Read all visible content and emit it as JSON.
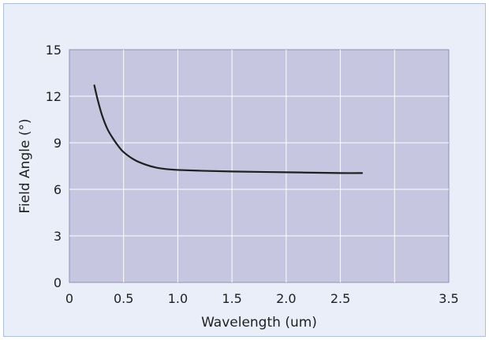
{
  "chart_data": {
    "type": "line",
    "title": "",
    "xlabel": "Wavelength (um)",
    "ylabel": "Field Angle (°)",
    "xlim": [
      0,
      3.5
    ],
    "ylim": [
      0,
      15
    ],
    "xticks": [
      0,
      0.5,
      1.0,
      1.5,
      2.0,
      2.5,
      3.5
    ],
    "xtick_labels": [
      "0",
      "0.5",
      "1.0",
      "1.5",
      "2.0",
      "2.5",
      "3.5"
    ],
    "yticks": [
      0,
      3,
      6,
      9,
      12,
      15
    ],
    "ytick_labels": [
      "0",
      "3",
      "6",
      "9",
      "12",
      "15"
    ],
    "grid": true,
    "legend": "none",
    "series": [
      {
        "values": [
          [
            0.23,
            12.7
          ],
          [
            0.26,
            11.8
          ],
          [
            0.3,
            10.8
          ],
          [
            0.35,
            9.9
          ],
          [
            0.4,
            9.3
          ],
          [
            0.45,
            8.8
          ],
          [
            0.5,
            8.4
          ],
          [
            0.6,
            7.9
          ],
          [
            0.7,
            7.6
          ],
          [
            0.8,
            7.4
          ],
          [
            0.9,
            7.3
          ],
          [
            1.0,
            7.25
          ],
          [
            1.2,
            7.2
          ],
          [
            1.5,
            7.15
          ],
          [
            2.0,
            7.1
          ],
          [
            2.5,
            7.05
          ],
          [
            2.7,
            7.05
          ]
        ]
      }
    ],
    "colors": {
      "frame_bg": "#e9eef8",
      "frame_border": "#aebfdc",
      "plot_bg": "#c6c6e0",
      "plot_border": "#8f8fb8",
      "grid": "#ffffff",
      "line": "#1f1f1f"
    }
  }
}
